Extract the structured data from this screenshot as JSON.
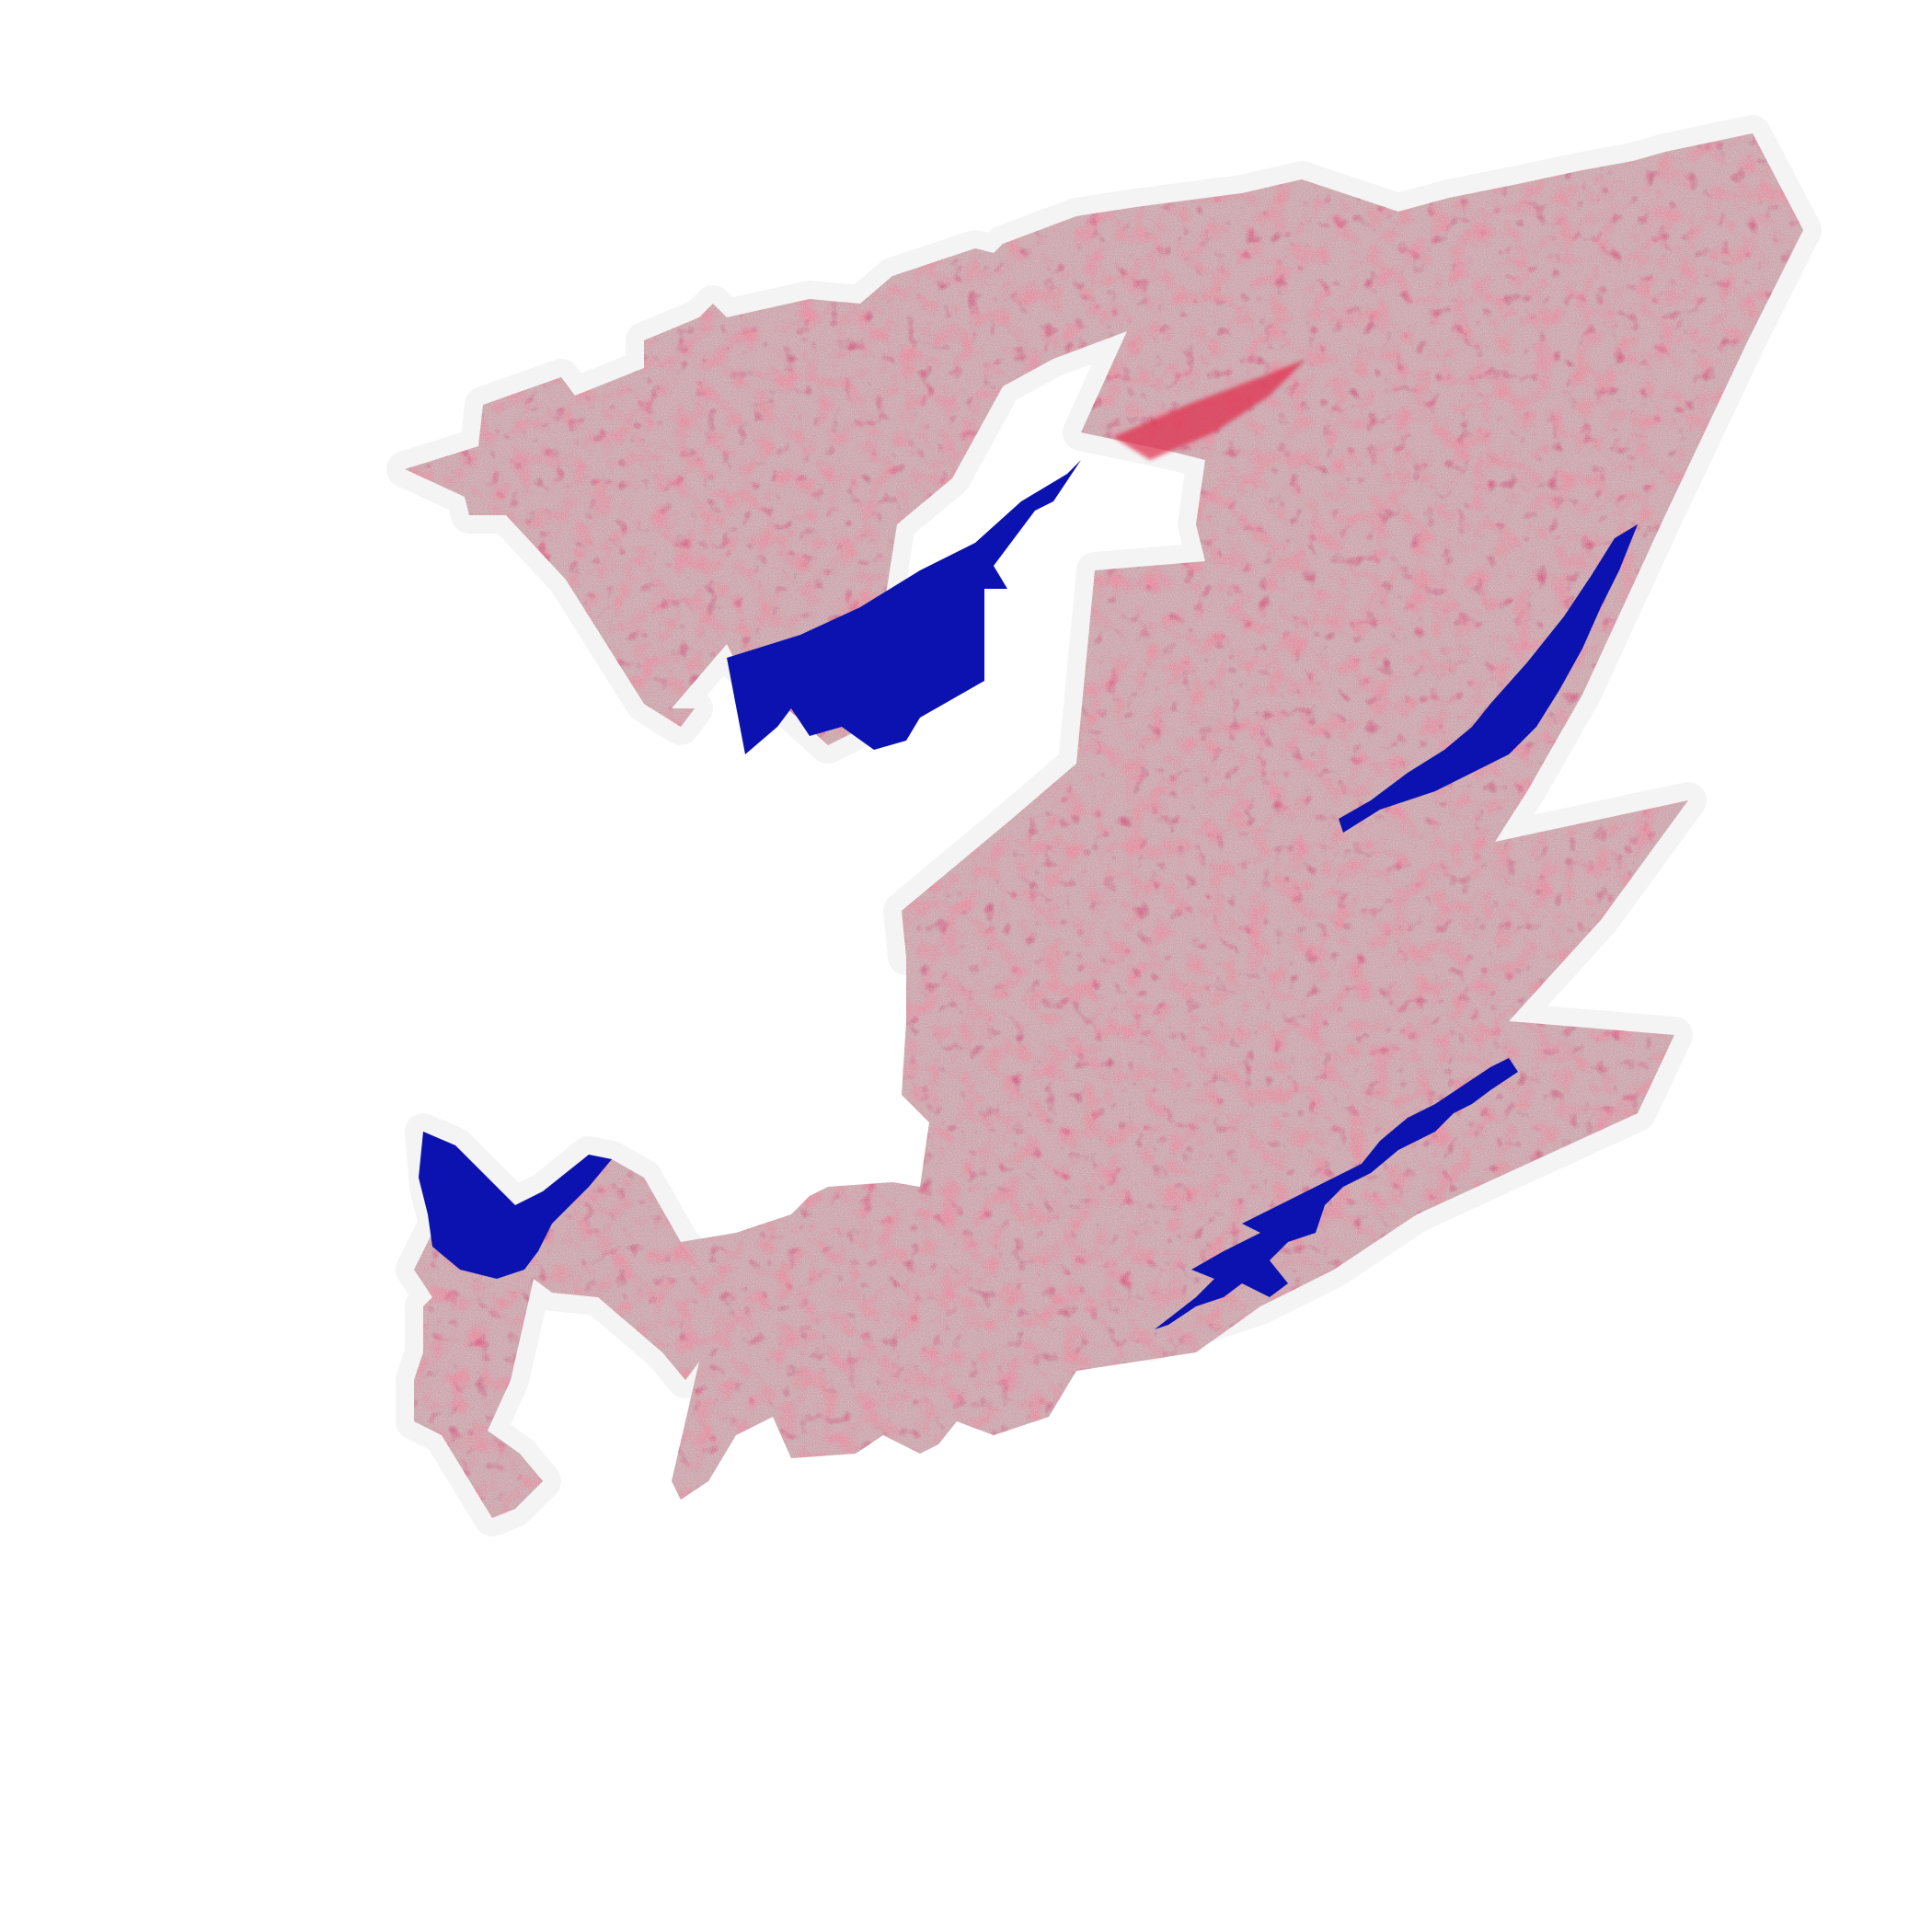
{
  "map": {
    "colors": {
      "background": "#ffffff",
      "halo": "#ffffff",
      "land_base": "#c79aa2",
      "land_light": "#d9c3c6",
      "land_red": "#d83a55",
      "land_dark_red": "#a5102c",
      "water": "#0b12b0"
    },
    "layers": [
      "halo",
      "land-region-north",
      "land-region-south",
      "water-bodies",
      "land-texture"
    ],
    "legend": null
  }
}
